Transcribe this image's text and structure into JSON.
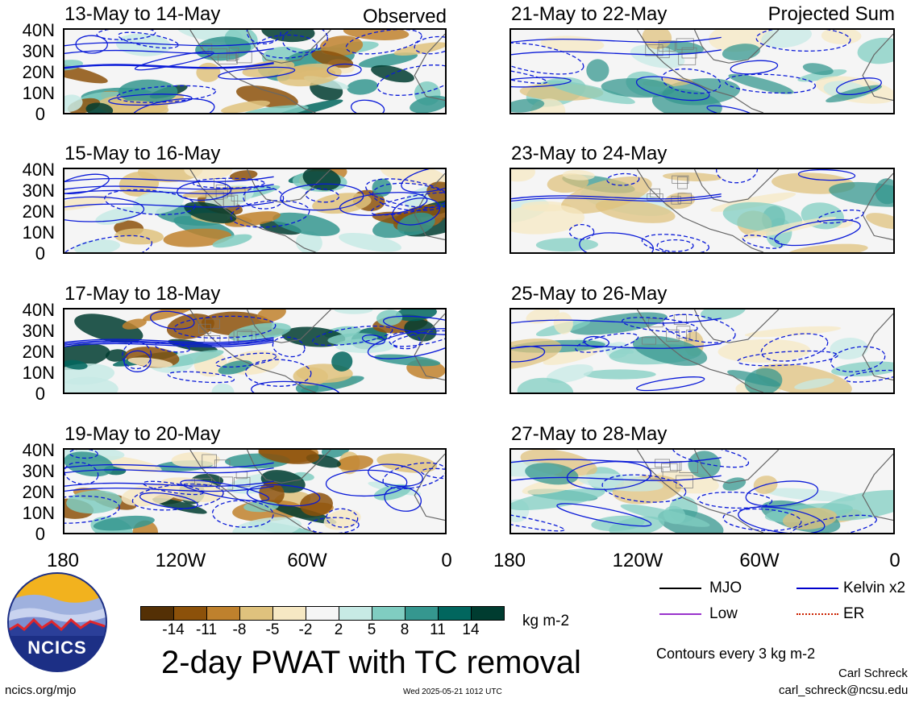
{
  "chart_data": [
    {
      "type": "heatmap",
      "title": "13-May to 14-May",
      "tag": "Observed",
      "lat_ticks": [
        "40N",
        "30N",
        "20N",
        "10N",
        "0"
      ],
      "lon_ticks": [
        "180",
        "120W",
        "60W",
        "0"
      ]
    },
    {
      "type": "heatmap",
      "title": "15-May to 16-May",
      "tag": "",
      "lat_ticks": [
        "40N",
        "30N",
        "20N",
        "10N",
        "0"
      ],
      "lon_ticks": [
        "180",
        "120W",
        "60W",
        "0"
      ]
    },
    {
      "type": "heatmap",
      "title": "17-May to 18-May",
      "tag": "",
      "lat_ticks": [
        "40N",
        "30N",
        "20N",
        "10N",
        "0"
      ],
      "lon_ticks": [
        "180",
        "120W",
        "60W",
        "0"
      ]
    },
    {
      "type": "heatmap",
      "title": "19-May to 20-May",
      "tag": "",
      "lat_ticks": [
        "40N",
        "30N",
        "20N",
        "10N",
        "0"
      ],
      "lon_ticks": [
        "180",
        "120W",
        "60W",
        "0"
      ]
    },
    {
      "type": "heatmap",
      "title": "21-May to 22-May",
      "tag": "Projected Sum",
      "lat_ticks": [],
      "lon_ticks": [
        "180",
        "120W",
        "60W",
        "0"
      ]
    },
    {
      "type": "heatmap",
      "title": "23-May to 24-May",
      "tag": "",
      "lat_ticks": [],
      "lon_ticks": [
        "180",
        "120W",
        "60W",
        "0"
      ]
    },
    {
      "type": "heatmap",
      "title": "25-May to 26-May",
      "tag": "",
      "lat_ticks": [],
      "lon_ticks": [
        "180",
        "120W",
        "60W",
        "0"
      ]
    },
    {
      "type": "heatmap",
      "title": "27-May to 28-May",
      "tag": "",
      "lat_ticks": [],
      "lon_ticks": [
        "180",
        "120W",
        "60W",
        "0"
      ]
    }
  ],
  "colorbar": {
    "labels": [
      "-14",
      "-11",
      "-8",
      "-5",
      "-2",
      "2",
      "5",
      "8",
      "11",
      "14"
    ],
    "colors": [
      "#543005",
      "#8c510a",
      "#bf812d",
      "#dfc27d",
      "#f6e8c3",
      "#f5f5f5",
      "#c7eae5",
      "#80cdc1",
      "#35978f",
      "#01665e",
      "#003c30"
    ],
    "units": "kg m-2"
  },
  "legend": {
    "items": [
      {
        "label": "MJO",
        "color": "#000000",
        "style": "solid"
      },
      {
        "label": "Kelvin x2",
        "color": "#0000cc",
        "style": "solid"
      },
      {
        "label": "Low",
        "color": "#9933cc",
        "style": "solid"
      },
      {
        "label": "ER",
        "color": "#cc2200",
        "style": "dotted"
      }
    ],
    "contours_note": "Contours every 3 kg m-2"
  },
  "main_title": "2-day PWAT with TC removal",
  "logo_text": "NCICS",
  "footer": {
    "url": "ncics.org/mjo",
    "timestamp": "Wed 2025-05-21 1012 UTC",
    "author": "Carl Schreck",
    "email": "carl_schreck@ncsu.edu"
  }
}
